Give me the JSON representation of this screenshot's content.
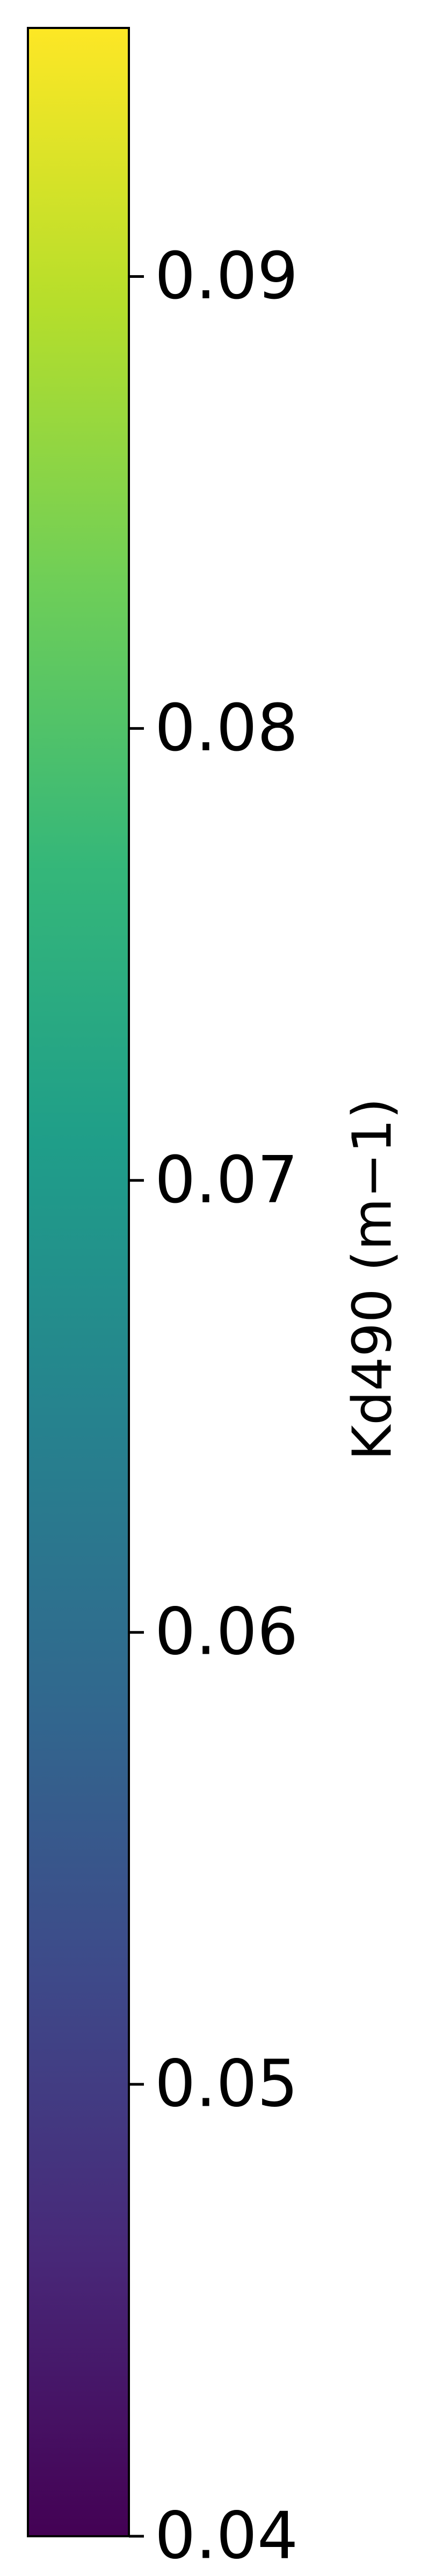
{
  "chart_data": {
    "type": "colorbar",
    "colormap": "viridis",
    "orientation": "vertical",
    "range": [
      0.04,
      0.0955
    ],
    "ticks": [
      0.04,
      0.05,
      0.06,
      0.07,
      0.08,
      0.09
    ],
    "tick_labels": [
      "0.04",
      "0.05",
      "0.06",
      "0.07",
      "0.08",
      "0.09"
    ],
    "label": "Kd490 (m−1)",
    "label_position": "right",
    "tick_position": "right",
    "colors": {
      "viridis_stops": [
        "#440154",
        "#482878",
        "#3e4989",
        "#31688e",
        "#26828e",
        "#1f9e89",
        "#35b779",
        "#6ece58",
        "#b5de2b",
        "#fde725"
      ],
      "frame": "#000000"
    }
  }
}
